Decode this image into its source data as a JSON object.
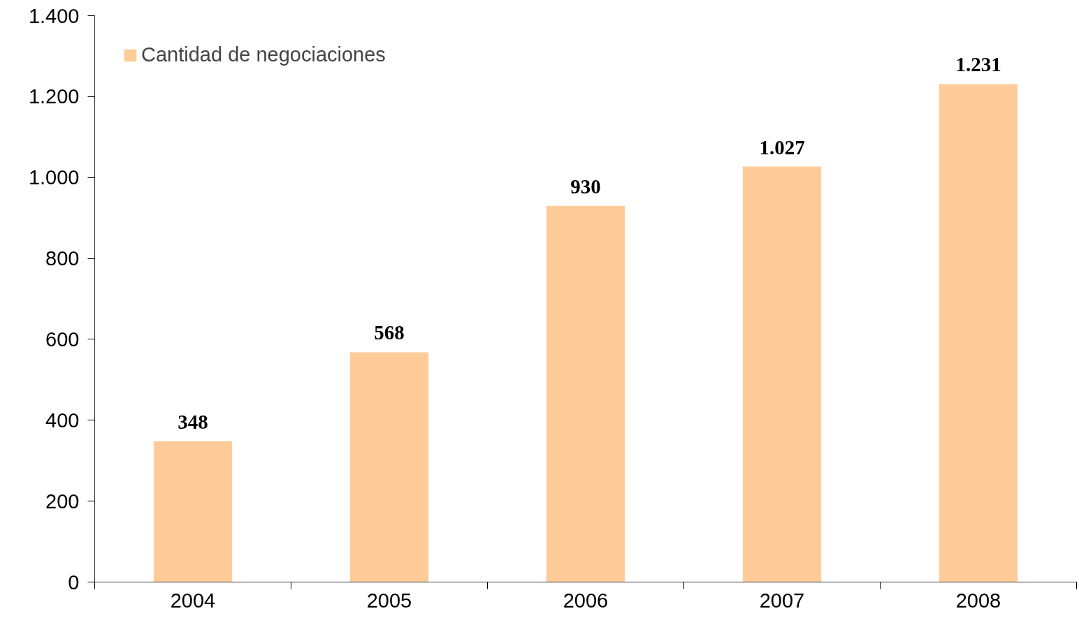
{
  "chart_data": {
    "type": "bar",
    "categories": [
      "2004",
      "2005",
      "2006",
      "2007",
      "2008"
    ],
    "series": [
      {
        "name": "Cantidad de negociaciones",
        "color": "#ffcc99",
        "values": [
          348,
          568,
          930,
          1027,
          1231
        ],
        "value_labels": [
          "348",
          "568",
          "930",
          "1.027",
          "1.231"
        ]
      }
    ],
    "ylim": [
      0,
      1400
    ],
    "yticks": [
      0,
      200,
      400,
      600,
      800,
      {
        "value": 1000,
        "label": "1.000"
      },
      {
        "value": 1200,
        "label": "1.200"
      },
      {
        "value": 1400,
        "label": "1.400"
      }
    ],
    "grid": false,
    "legend": "top left"
  }
}
